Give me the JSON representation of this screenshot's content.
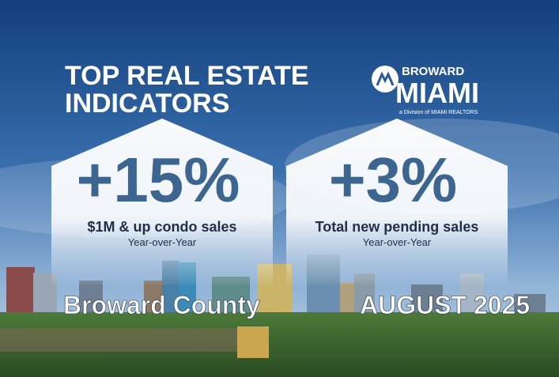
{
  "header": {
    "title_lines": [
      "TOP REAL ESTATE",
      "INDICATORS"
    ]
  },
  "logo": {
    "top": "BROWARD",
    "main": "MIAMI",
    "tagline": "a Division of MIAMI REALTORS"
  },
  "cards": [
    {
      "value": "+15%",
      "label": "$1M & up condo sales",
      "period": "Year-over-Year",
      "region": "Broward County"
    },
    {
      "value": "+3%",
      "label": "Total new pending sales",
      "period": "Year-over-Year",
      "region": "AUGUST 2025"
    }
  ]
}
